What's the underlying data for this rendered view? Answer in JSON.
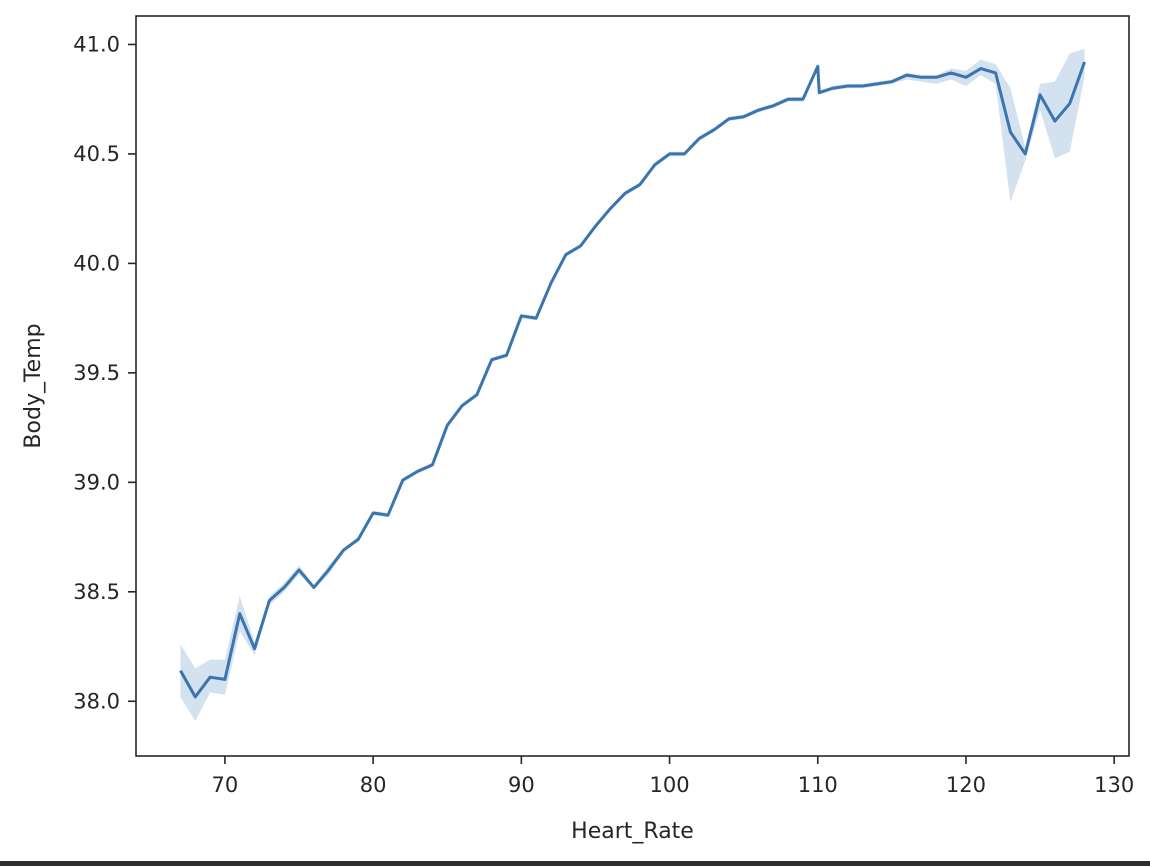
{
  "chart_data": {
    "type": "line",
    "xlabel": "Heart_Rate",
    "ylabel": "Body_Temp",
    "xlim": [
      64,
      131
    ],
    "ylim": [
      37.75,
      41.13
    ],
    "xticks": [
      70,
      80,
      90,
      100,
      110,
      120,
      130
    ],
    "yticks": [
      38.0,
      38.5,
      39.0,
      39.5,
      40.0,
      40.5,
      41.0
    ],
    "ytick_labels": [
      "38.0",
      "38.5",
      "39.0",
      "39.5",
      "40.0",
      "40.5",
      "41.0"
    ],
    "grid": false,
    "colors": {
      "line": "#3a75b0",
      "band": "#3a75b0"
    },
    "series": [
      {
        "x": [
          67,
          68,
          69,
          70,
          71,
          72,
          73,
          74,
          75,
          76,
          77,
          78,
          79,
          80,
          81,
          82,
          83,
          84,
          85,
          86,
          87,
          88,
          89,
          90,
          91,
          92,
          93,
          94,
          95,
          96,
          97,
          98,
          99,
          100,
          101,
          102,
          103,
          104,
          105,
          106,
          107,
          108,
          109,
          110,
          110.1,
          111,
          112,
          113,
          114,
          115,
          116,
          117,
          118,
          119,
          120,
          121,
          122,
          123,
          124,
          125,
          126,
          127,
          128
        ],
        "y": [
          38.14,
          38.02,
          38.11,
          38.1,
          38.4,
          38.24,
          38.46,
          38.52,
          38.6,
          38.52,
          38.6,
          38.69,
          38.74,
          38.86,
          38.85,
          39.01,
          39.05,
          39.08,
          39.26,
          39.35,
          39.4,
          39.56,
          39.58,
          39.76,
          39.75,
          39.91,
          40.04,
          40.08,
          40.17,
          40.25,
          40.32,
          40.36,
          40.45,
          40.5,
          40.5,
          40.57,
          40.61,
          40.66,
          40.67,
          40.7,
          40.72,
          40.75,
          40.75,
          40.9,
          40.78,
          40.8,
          40.81,
          40.81,
          40.82,
          40.83,
          40.86,
          40.85,
          40.85,
          40.87,
          40.85,
          40.89,
          40.87,
          40.6,
          40.5,
          40.77,
          40.65,
          40.73,
          40.92
        ],
        "ci_low": [
          38.02,
          37.91,
          38.04,
          38.03,
          38.32,
          38.21,
          38.44,
          38.5,
          38.58,
          38.51,
          38.58,
          38.68,
          38.73,
          38.85,
          38.84,
          39.0,
          39.04,
          39.07,
          39.25,
          39.34,
          39.39,
          39.55,
          39.57,
          39.75,
          39.74,
          39.9,
          40.03,
          40.07,
          40.16,
          40.24,
          40.31,
          40.35,
          40.44,
          40.49,
          40.49,
          40.56,
          40.6,
          40.65,
          40.66,
          40.69,
          40.71,
          40.74,
          40.74,
          40.89,
          40.77,
          40.79,
          40.8,
          40.8,
          40.81,
          40.82,
          40.84,
          40.83,
          40.82,
          40.84,
          40.81,
          40.86,
          40.82,
          40.28,
          40.47,
          40.7,
          40.48,
          40.51,
          40.85
        ],
        "ci_high": [
          38.26,
          38.15,
          38.19,
          38.19,
          38.48,
          38.27,
          38.48,
          38.54,
          38.62,
          38.53,
          38.62,
          38.7,
          38.75,
          38.87,
          38.86,
          39.02,
          39.06,
          39.09,
          39.27,
          39.36,
          39.41,
          39.57,
          39.59,
          39.77,
          39.76,
          39.92,
          40.05,
          40.09,
          40.18,
          40.26,
          40.33,
          40.37,
          40.46,
          40.51,
          40.51,
          40.58,
          40.62,
          40.67,
          40.68,
          40.71,
          40.73,
          40.76,
          40.76,
          40.91,
          40.79,
          40.81,
          40.82,
          40.82,
          40.83,
          40.84,
          40.87,
          40.86,
          40.86,
          40.89,
          40.88,
          40.93,
          40.91,
          40.8,
          40.53,
          40.82,
          40.83,
          40.96,
          40.98
        ]
      }
    ]
  }
}
